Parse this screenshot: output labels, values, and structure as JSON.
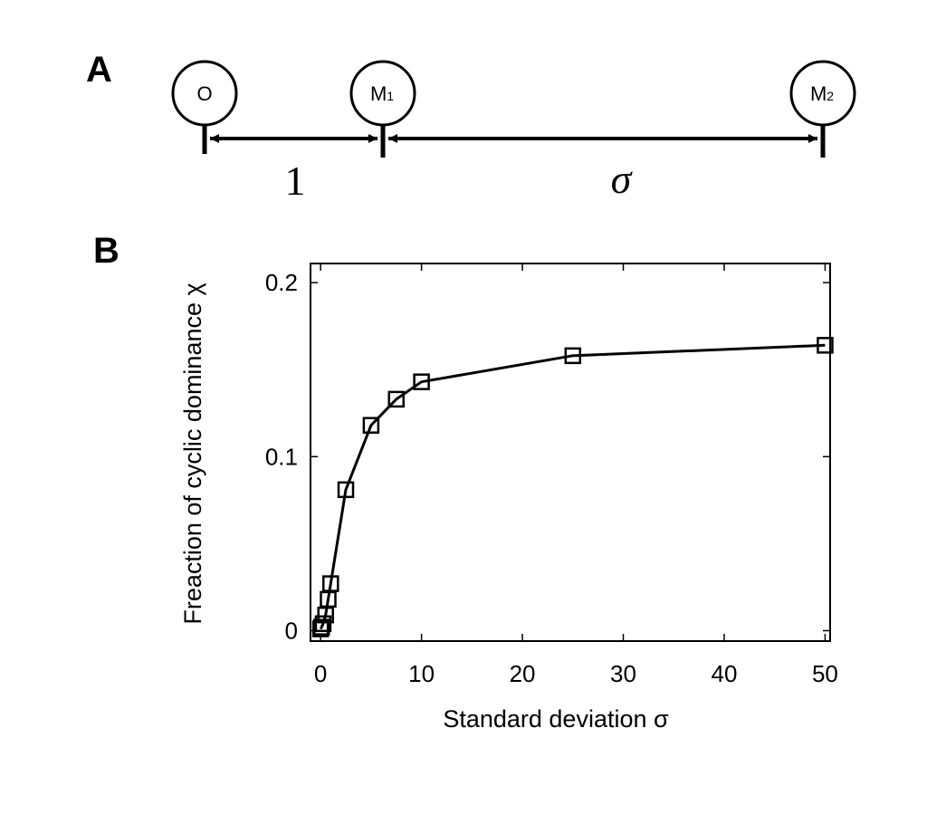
{
  "panel_a": {
    "label": "A",
    "nodes": [
      {
        "text": "O",
        "sub": ""
      },
      {
        "text": "M",
        "sub": "1"
      },
      {
        "text": "M",
        "sub": "2"
      }
    ],
    "distances": [
      "1",
      "σ"
    ]
  },
  "chart_data": {
    "panel_label": "B",
    "type": "line",
    "marker": "square",
    "xlabel": "Standard deviation σ",
    "ylabel": "Freaction of cyclic dominance χ",
    "xlim": [
      -1,
      50.5
    ],
    "ylim": [
      -0.006,
      0.211
    ],
    "xticks": [
      0,
      10,
      20,
      30,
      40,
      50
    ],
    "xtick_labels": [
      "0",
      "10",
      "20",
      "30",
      "40",
      "50"
    ],
    "yticks": [
      0,
      0.1,
      0.2
    ],
    "ytick_labels": [
      "0",
      "0.1",
      "0.2"
    ],
    "grid": false,
    "series": [
      {
        "x": [
          0,
          0.1,
          0.25,
          0.5,
          0.75,
          1,
          2.5,
          5,
          7.5,
          10,
          25,
          50
        ],
        "y": [
          0.001,
          0.002,
          0.004,
          0.009,
          0.018,
          0.027,
          0.081,
          0.118,
          0.133,
          0.143,
          0.158,
          0.164
        ]
      }
    ]
  }
}
